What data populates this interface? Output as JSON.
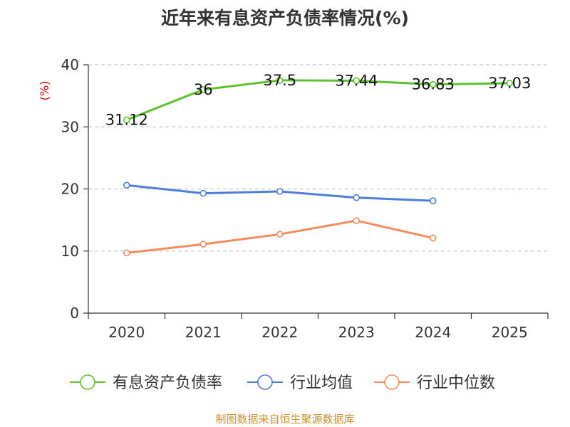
{
  "footer": {
    "source": "制图数据来自恒生聚源数据库"
  },
  "chart_data": {
    "type": "line",
    "title": "近年来有息资产负债率情况(%)",
    "ylabel": "(%)",
    "xlabel": "",
    "categories": [
      "2020",
      "2021",
      "2022",
      "2023",
      "2024",
      "2025"
    ],
    "ylim": [
      0,
      40
    ],
    "yticks": [
      0,
      10,
      20,
      30,
      40
    ],
    "grid": true,
    "legend_position": "bottom",
    "series": [
      {
        "name": "有息资产负债率",
        "color": "#5cc12d",
        "values": [
          31.12,
          36,
          37.5,
          37.44,
          36.83,
          37.03
        ],
        "labels": [
          "31.12",
          "36",
          "37.5",
          "37.44",
          "36.83",
          "37.03"
        ]
      },
      {
        "name": "行业均值",
        "color": "#4e7ddb",
        "values": [
          20.6,
          19.3,
          19.6,
          18.6,
          18.1,
          null
        ]
      },
      {
        "name": "行业中位数",
        "color": "#f28c5c",
        "values": [
          9.7,
          11.1,
          12.7,
          14.9,
          12.1,
          null
        ]
      }
    ]
  }
}
